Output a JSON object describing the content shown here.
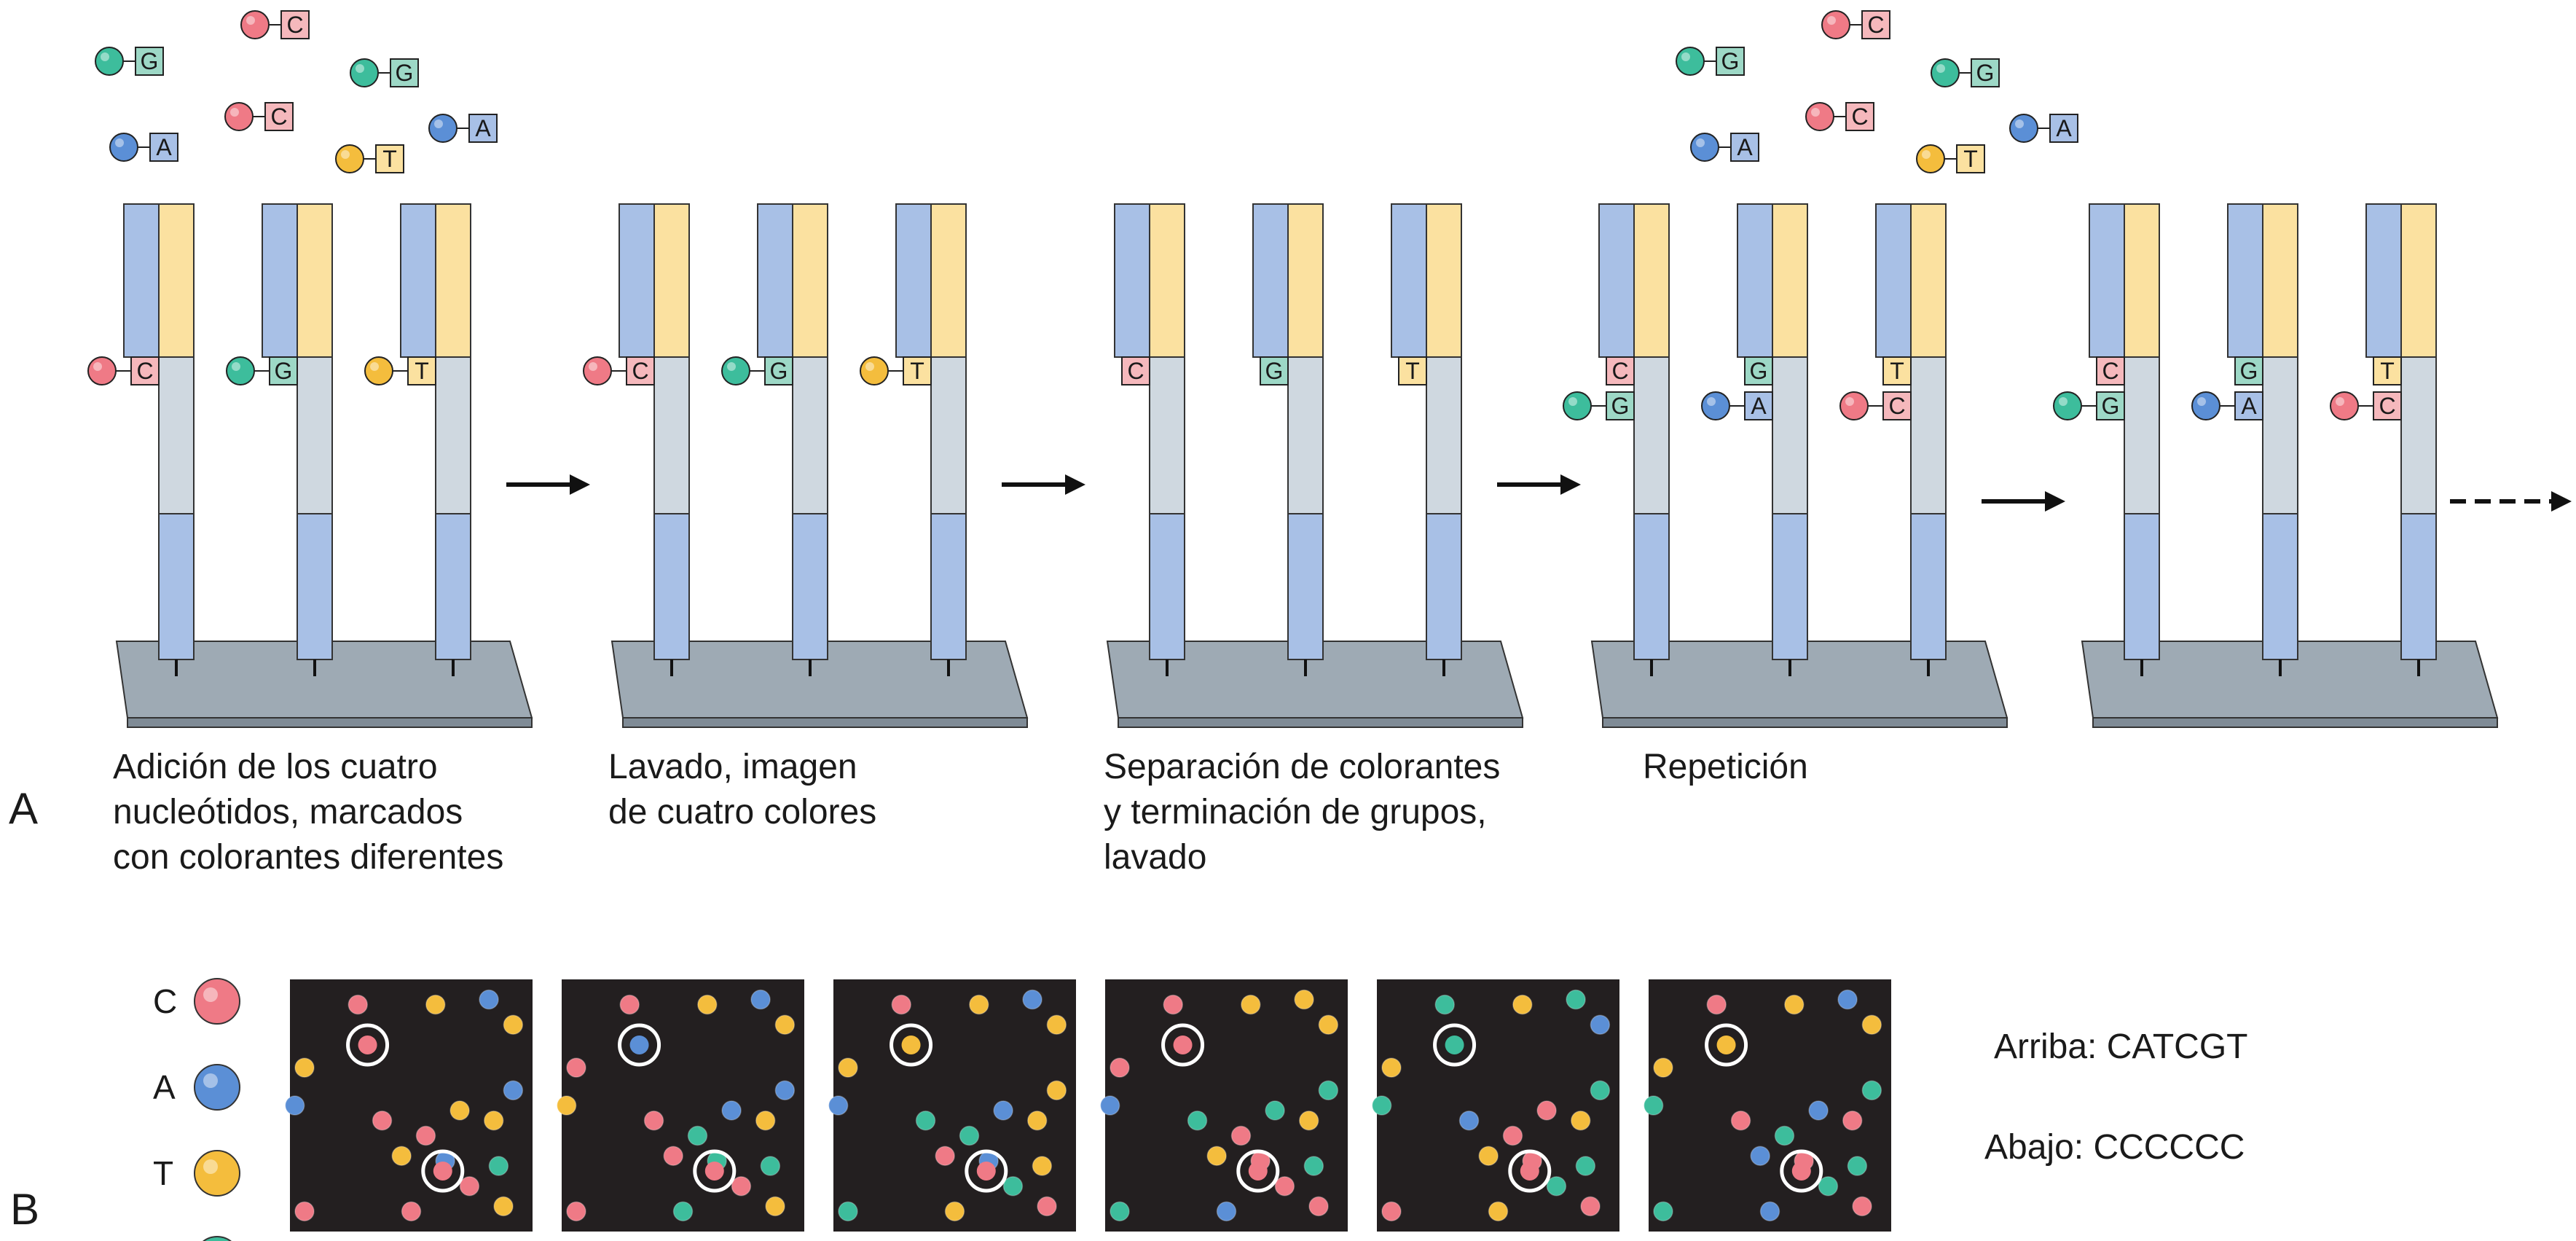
{
  "colors": {
    "C": "#ef7a86",
    "A": "#5b8fd6",
    "T": "#f4bd3d",
    "G": "#3dbd9c",
    "C_tag": "#f5b8bc",
    "A_tag": "#a8c0e6",
    "T_tag": "#fbe1a0",
    "G_tag": "#9dd8c6",
    "strand_blue": "#a8c0e6",
    "strand_yellow": "#fbe1a0",
    "strand_gray": "#cfd8e0",
    "plate": "#9eaab4",
    "plate_side": "#7f8b96",
    "panel_bg": "#231f20"
  },
  "panel_a": {
    "label": "A",
    "floating_nucleotides": [
      "G",
      "C",
      "G",
      "A",
      "C",
      "T",
      "A"
    ],
    "steps": [
      {
        "caption": [
          "Adición de los cuatro",
          "nucleótidos, marcados",
          "con colorantes diferentes"
        ],
        "strands": [
          {
            "bases": [
              {
                "base": "C",
                "dye": true
              }
            ]
          },
          {
            "bases": [
              {
                "base": "G",
                "dye": true
              }
            ]
          },
          {
            "bases": [
              {
                "base": "T",
                "dye": true
              }
            ]
          }
        ],
        "arrow": "solid"
      },
      {
        "caption": [
          "Lavado, imagen",
          "de cuatro colores"
        ],
        "strands": [
          {
            "bases": [
              {
                "base": "C",
                "dye": true
              }
            ]
          },
          {
            "bases": [
              {
                "base": "G",
                "dye": true
              }
            ]
          },
          {
            "bases": [
              {
                "base": "T",
                "dye": true
              }
            ]
          }
        ],
        "arrow": "solid"
      },
      {
        "caption": [
          "Separación de colorantes",
          "y terminación de grupos,",
          "lavado"
        ],
        "strands": [
          {
            "bases": [
              {
                "base": "C",
                "dye": false
              }
            ]
          },
          {
            "bases": [
              {
                "base": "G",
                "dye": false
              }
            ]
          },
          {
            "bases": [
              {
                "base": "T",
                "dye": false
              }
            ]
          }
        ],
        "arrow": "solid"
      },
      {
        "caption": [
          "Repetición"
        ],
        "strands": [
          {
            "bases": [
              {
                "base": "C",
                "dye": false
              },
              {
                "base": "G",
                "dye": true
              }
            ]
          },
          {
            "bases": [
              {
                "base": "G",
                "dye": false
              },
              {
                "base": "A",
                "dye": true
              }
            ]
          },
          {
            "bases": [
              {
                "base": "T",
                "dye": false
              },
              {
                "base": "C",
                "dye": true
              }
            ]
          }
        ],
        "arrow": "solid"
      },
      {
        "caption": [],
        "strands": [
          {
            "bases": [
              {
                "base": "C",
                "dye": false
              },
              {
                "base": "G",
                "dye": true
              }
            ]
          },
          {
            "bases": [
              {
                "base": "G",
                "dye": false
              },
              {
                "base": "A",
                "dye": true
              }
            ]
          },
          {
            "bases": [
              {
                "base": "T",
                "dye": false
              },
              {
                "base": "C",
                "dye": true
              }
            ]
          }
        ],
        "arrow": "dashed"
      }
    ]
  },
  "panel_b": {
    "label": "B",
    "legend": [
      {
        "base": "C"
      },
      {
        "base": "A"
      },
      {
        "base": "T"
      },
      {
        "base": "G"
      }
    ],
    "cycles": [
      {
        "top_spot": "C",
        "bottom_spot": "C"
      },
      {
        "top_spot": "A",
        "bottom_spot": "C"
      },
      {
        "top_spot": "T",
        "bottom_spot": "C"
      },
      {
        "top_spot": "C",
        "bottom_spot": "C"
      },
      {
        "top_spot": "G",
        "bottom_spot": "C"
      },
      {
        "top_spot": "T",
        "bottom_spot": "C"
      }
    ],
    "result_top": "Arriba: CATCGT",
    "result_bottom": "Abajo: CCCCCC"
  }
}
